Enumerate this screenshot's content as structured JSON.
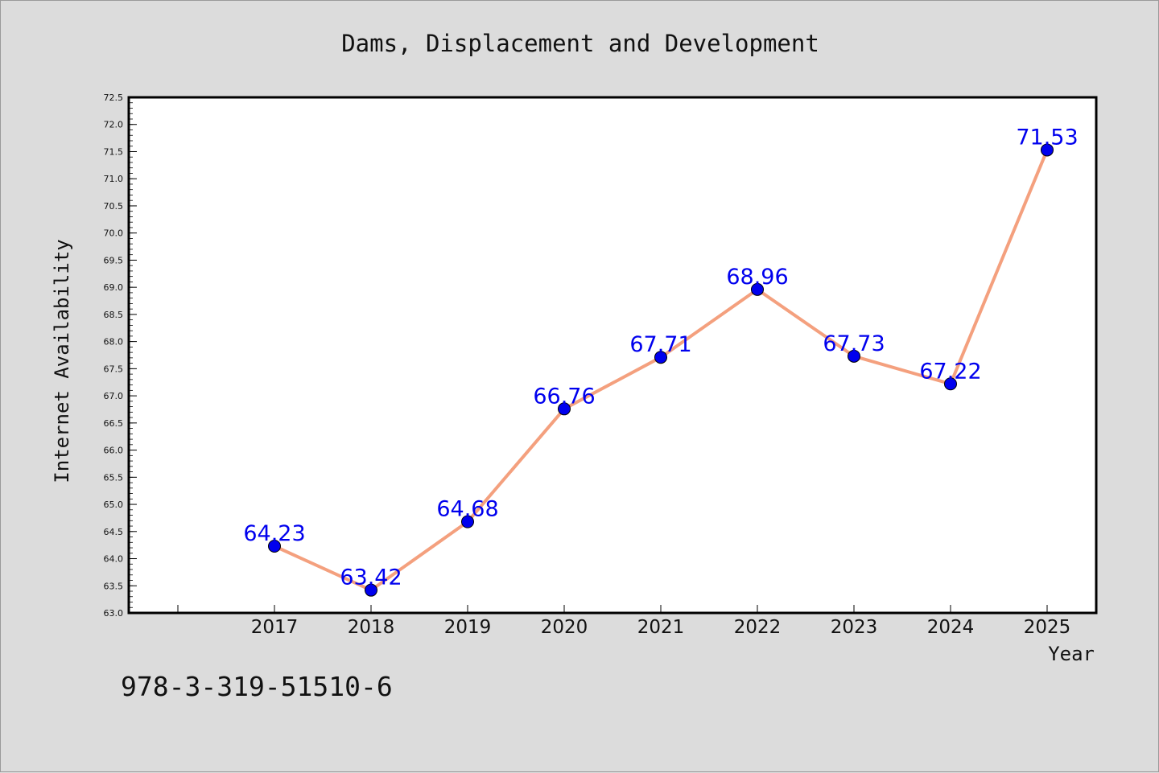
{
  "chart_data": {
    "type": "line",
    "title": "Dams, Displacement and Development",
    "xlabel": "Year",
    "ylabel": "Internet Availability",
    "categories": [
      "2017",
      "2018",
      "2019",
      "2020",
      "2021",
      "2022",
      "2023",
      "2024",
      "2025"
    ],
    "series": [
      {
        "values": [
          64.23,
          63.42,
          64.68,
          66.76,
          67.71,
          68.96,
          67.73,
          67.22,
          71.53
        ],
        "data_labels": [
          "64.23",
          "63.42",
          "64.68",
          "66.76",
          "67.71",
          "68.96",
          "67.73",
          "67.22",
          "71.53"
        ],
        "line_color": "#f4a07e",
        "marker_color": "#0000ee",
        "label_color": "#0000ee"
      }
    ],
    "ylim": [
      63.0,
      72.5
    ],
    "yticks": [
      "63.0",
      "63.5",
      "64.0",
      "64.5",
      "65.0",
      "65.5",
      "66.0",
      "66.5",
      "67.0",
      "67.5",
      "68.0",
      "68.5",
      "69.0",
      "69.5",
      "70.0",
      "70.5",
      "71.0",
      "71.5",
      "72.0",
      "72.5"
    ],
    "grid": false,
    "legend": "none"
  },
  "footer_text": "978-3-319-51510-6",
  "colors": {
    "background": "#dcdcdc",
    "plot_background": "#ffffff",
    "axes": "#000000"
  }
}
